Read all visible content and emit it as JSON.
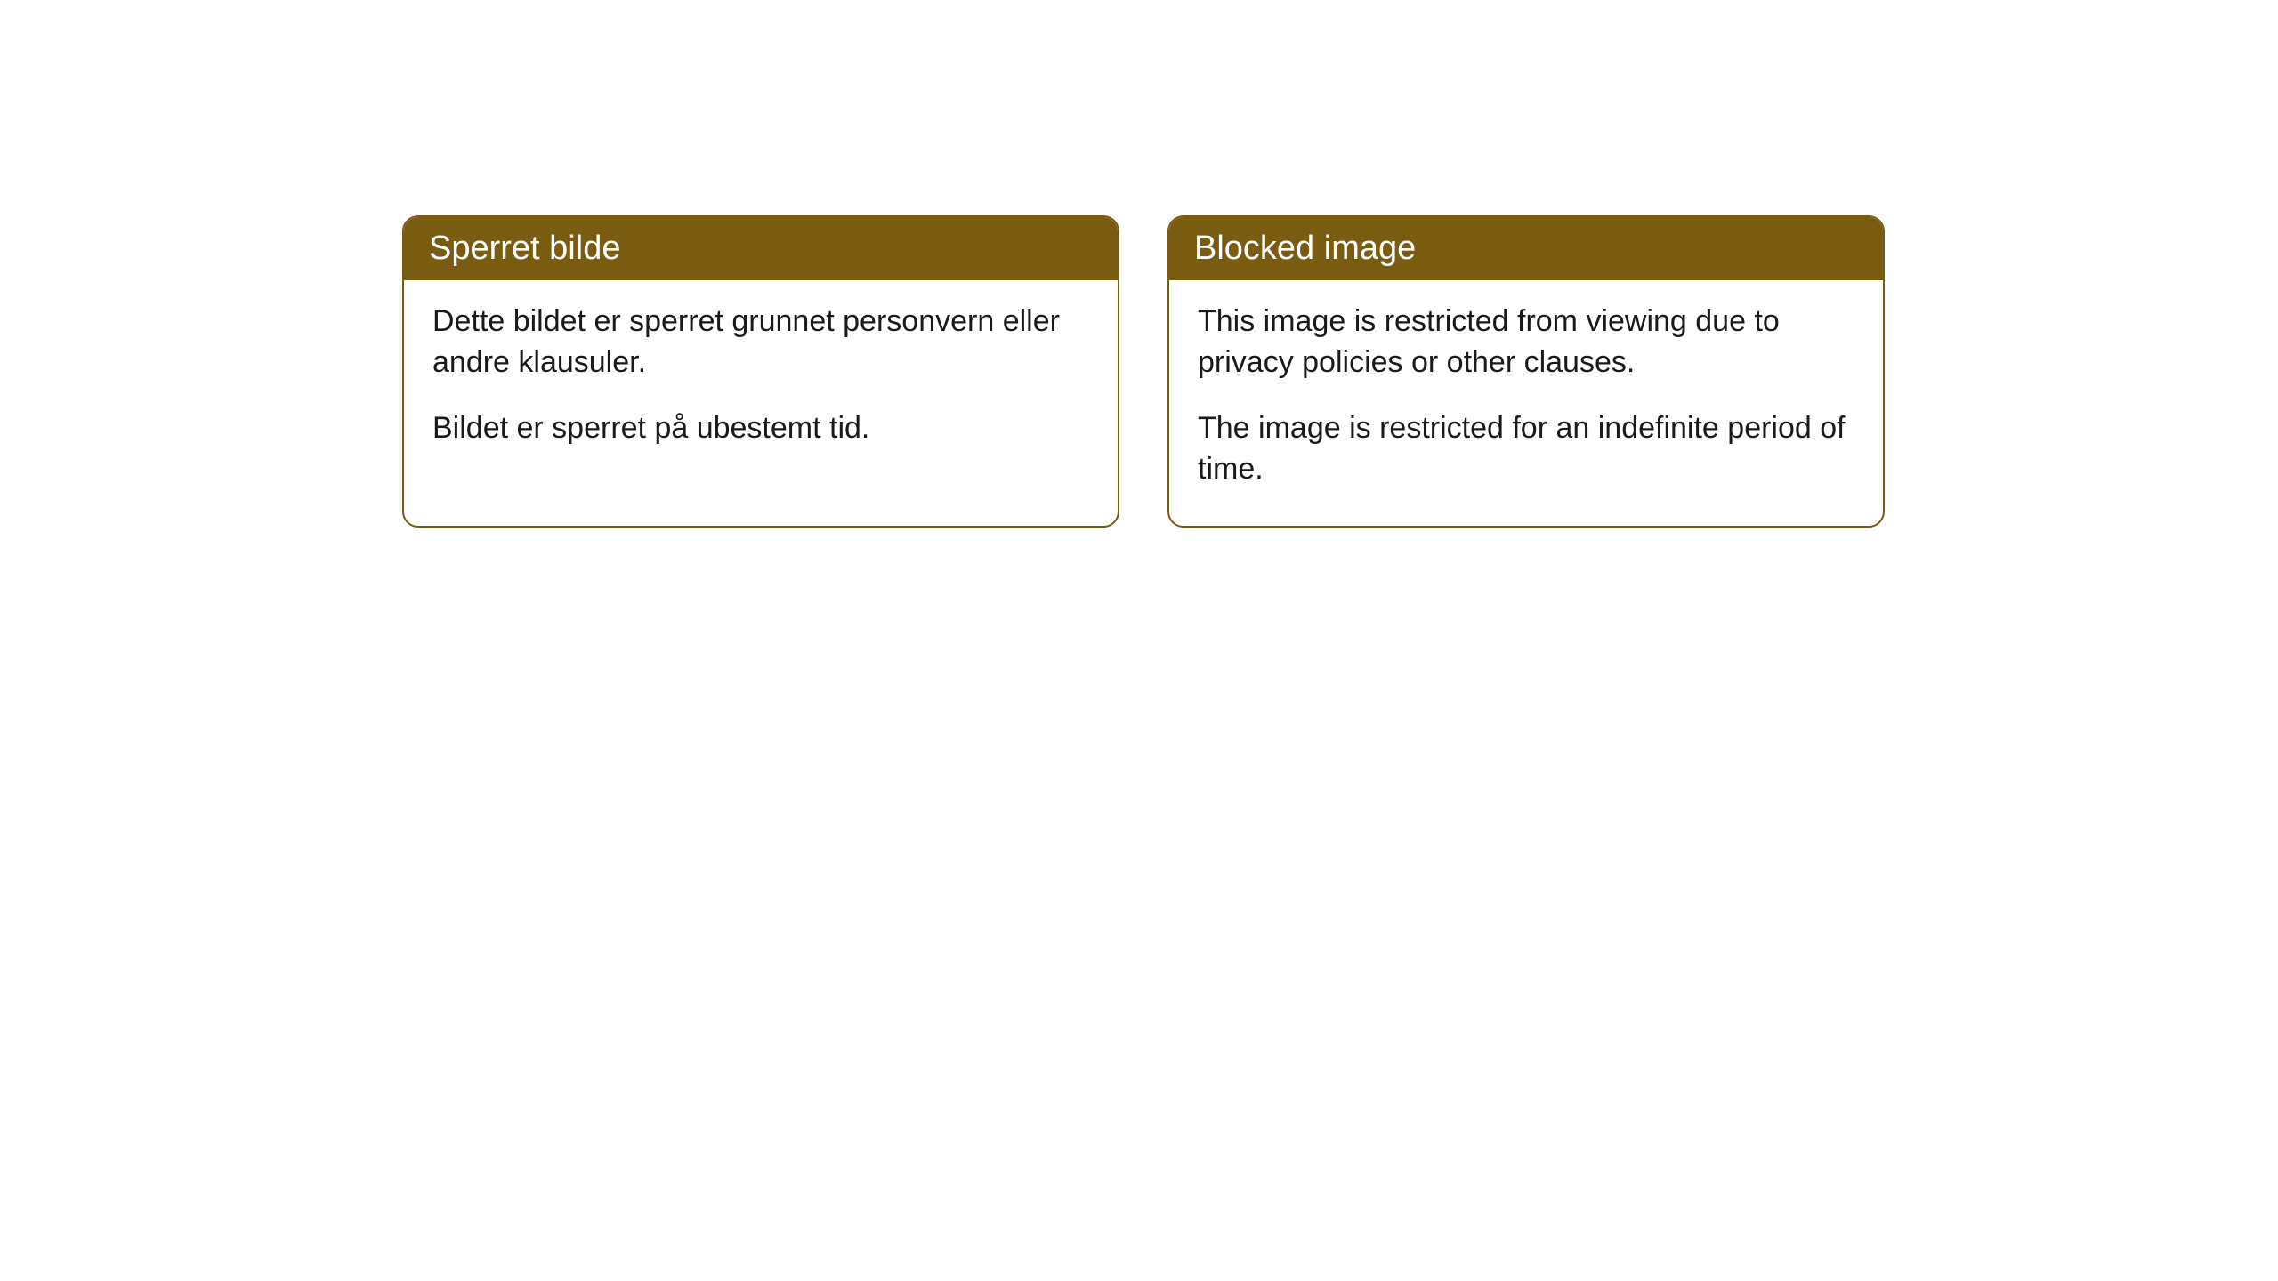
{
  "cards": [
    {
      "title": "Sperret bilde",
      "paragraph1": "Dette bildet er sperret grunnet personvern eller andre klausuler.",
      "paragraph2": "Bildet er sperret på ubestemt tid."
    },
    {
      "title": "Blocked image",
      "paragraph1": "This image is restricted from viewing due to privacy policies or other clauses.",
      "paragraph2": "The image is restricted for an indefinite period of time."
    }
  ],
  "style": {
    "header_background": "#7a5c10",
    "header_text_color": "#ffffff",
    "card_border_color": "#7a5c10",
    "card_background": "#ffffff",
    "body_text_color": "#1a1a1a",
    "page_background": "#ffffff",
    "border_radius": 18,
    "title_fontsize": 38,
    "body_fontsize": 34
  }
}
